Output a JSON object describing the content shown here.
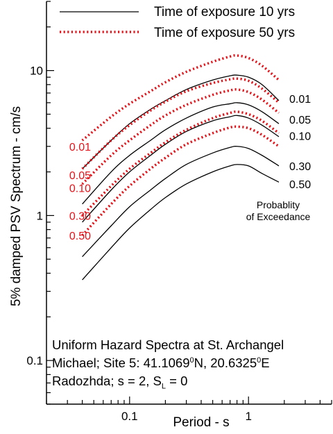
{
  "chart_data": {
    "type": "line",
    "ylabel": "5% damped PSV Spectrum - cm/s",
    "xlabel": "Period - s",
    "x_scale": "log",
    "y_scale": "log",
    "xlim": [
      0.02,
      5
    ],
    "ylim": [
      0.05,
      30
    ],
    "x_ticks": [
      {
        "value": 0.1,
        "label": "0.1"
      },
      {
        "value": 1,
        "label": "1"
      }
    ],
    "y_ticks": [
      {
        "value": 0.1,
        "label": "0.1"
      },
      {
        "value": 1,
        "label": "1"
      },
      {
        "value": 10,
        "label": "10"
      }
    ],
    "legend": {
      "position": "top",
      "entries": [
        {
          "label": "Time of exposure 10 yrs",
          "style": "solid",
          "color": "#000000"
        },
        {
          "label": "Time of exposure 50 yrs",
          "style": "dotted",
          "color": "#e4141b"
        }
      ]
    },
    "probability_title": [
      "Probablity",
      "of Exceedance"
    ],
    "x": [
      0.04,
      0.07,
      0.1,
      0.15,
      0.2,
      0.3,
      0.5,
      0.7,
      0.8,
      1.0,
      1.3,
      1.8
    ],
    "series": [
      {
        "group": "10 yrs",
        "prob_label": "0.01",
        "values": [
          2.1,
          3.3,
          4.3,
          5.4,
          6.2,
          7.4,
          8.6,
          9.2,
          9.3,
          9.0,
          8.0,
          6.2
        ]
      },
      {
        "group": "10 yrs",
        "prob_label": "0.05",
        "values": [
          1.2,
          2.0,
          2.6,
          3.3,
          3.9,
          4.7,
          5.6,
          5.9,
          6.0,
          5.8,
          5.2,
          4.3
        ]
      },
      {
        "group": "10 yrs",
        "prob_label": "0.10",
        "values": [
          0.9,
          1.5,
          2.0,
          2.6,
          3.1,
          3.8,
          4.5,
          4.8,
          4.9,
          4.7,
          4.2,
          3.5
        ]
      },
      {
        "group": "10 yrs",
        "prob_label": "0.30",
        "values": [
          0.52,
          0.85,
          1.15,
          1.5,
          1.8,
          2.25,
          2.7,
          2.95,
          3.0,
          2.9,
          2.6,
          2.2
        ]
      },
      {
        "group": "10 yrs",
        "prob_label": "0.50",
        "values": [
          0.36,
          0.6,
          0.82,
          1.1,
          1.33,
          1.65,
          2.0,
          2.2,
          2.25,
          2.2,
          1.95,
          1.7
        ]
      },
      {
        "group": "50 yrs",
        "prob_label": "0.01",
        "values": [
          3.3,
          4.8,
          5.9,
          7.2,
          8.3,
          9.8,
          11.5,
          12.5,
          12.7,
          12.2,
          10.8,
          8.6
        ]
      },
      {
        "group": "50 yrs",
        "prob_label": "0.05",
        "values": [
          2.1,
          3.3,
          4.2,
          5.3,
          6.1,
          7.2,
          8.2,
          8.7,
          8.8,
          8.5,
          7.5,
          6.0
        ]
      },
      {
        "group": "50 yrs",
        "prob_label": "0.10",
        "values": [
          1.65,
          2.6,
          3.3,
          4.2,
          4.9,
          5.8,
          6.8,
          7.3,
          7.4,
          7.1,
          6.3,
          5.1
        ]
      },
      {
        "group": "50 yrs",
        "prob_label": "0.30",
        "values": [
          1.0,
          1.6,
          2.1,
          2.7,
          3.2,
          3.9,
          4.7,
          5.1,
          5.2,
          5.0,
          4.5,
          3.7
        ]
      },
      {
        "group": "50 yrs",
        "prob_label": "0.50",
        "values": [
          0.73,
          1.2,
          1.6,
          2.1,
          2.5,
          3.1,
          3.7,
          4.05,
          4.1,
          4.0,
          3.6,
          3.0
        ]
      }
    ],
    "right_labels": [
      {
        "text": "0.01",
        "y": 6.4
      },
      {
        "text": "0.05",
        "y": 4.6
      },
      {
        "text": "0.10",
        "y": 3.55
      },
      {
        "text": "0.30",
        "y": 2.2
      },
      {
        "text": "0.50",
        "y": 1.65
      }
    ],
    "left_labels": [
      {
        "text": "0.01",
        "y": 3.0
      },
      {
        "text": "0.05",
        "y": 1.9
      },
      {
        "text": "0.10",
        "y": 1.55
      },
      {
        "text": "0.30",
        "y": 1.0
      },
      {
        "text": "0.50",
        "y": 0.73
      }
    ],
    "annotation": {
      "line1": "Uniform Hazard Spectra at St. Archangel",
      "line2_pre": "Michael; Site 5: 41.1069",
      "line2_sup1": "0",
      "line2_mid": "N, 20.6325",
      "line2_sup2": "0",
      "line2_post": "E",
      "line3_pre": "Radozhda;   s = 2, S",
      "line3_sub": "L",
      "line3_post": " = 0"
    },
    "colors": {
      "series_10": "#000000",
      "series_50": "#e4141b"
    }
  }
}
